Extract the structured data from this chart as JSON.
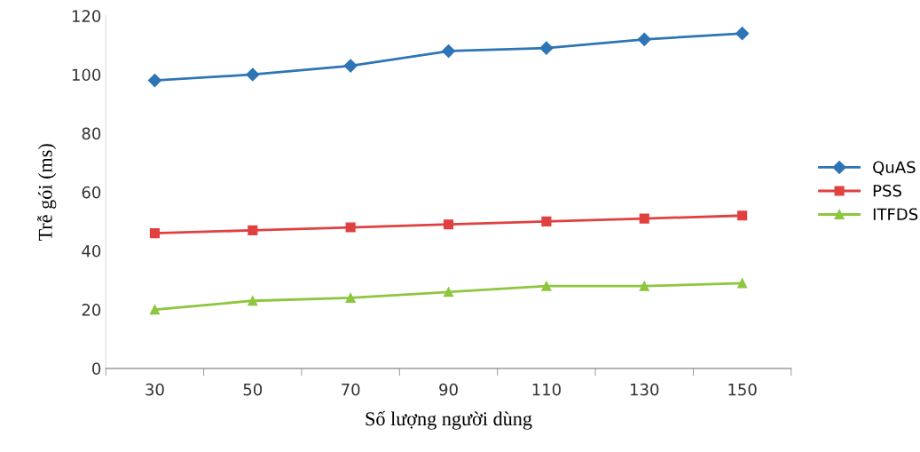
{
  "chart_data": {
    "type": "line",
    "xlabel": "Số lượng người dùng",
    "ylabel": "Trễ gói (ms)",
    "categories": [
      "30",
      "50",
      "70",
      "90",
      "110",
      "130",
      "150"
    ],
    "series": [
      {
        "name": "QuAS",
        "color": "#2e75b6",
        "marker": "diamond",
        "values": [
          98,
          100,
          103,
          108,
          109,
          112,
          114
        ]
      },
      {
        "name": "PSS",
        "color": "#e04040",
        "marker": "square",
        "values": [
          46,
          47,
          48,
          49,
          50,
          51,
          52
        ]
      },
      {
        "name": "ITFDS",
        "color": "#8dc63f",
        "marker": "triangle",
        "values": [
          20,
          23,
          24,
          26,
          28,
          28,
          29
        ]
      }
    ],
    "ylim": [
      0,
      120
    ],
    "yticks": [
      0,
      20,
      40,
      60,
      80,
      100,
      120
    ],
    "grid": false,
    "legend": "right"
  }
}
